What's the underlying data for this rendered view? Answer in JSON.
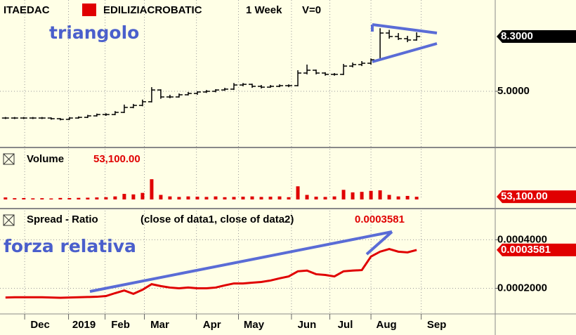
{
  "chart_data": [
    {
      "type": "ohlc",
      "symbol": "ITAEDAC",
      "title": "EDILIZIACROBATIC",
      "interval": "1 Week",
      "info": "V=0",
      "annotation": "triangolo",
      "color": "#000000",
      "open": [
        3.39,
        3.39,
        3.39,
        3.39,
        3.39,
        3.39,
        3.35,
        3.31,
        3.39,
        3.43,
        3.52,
        3.6,
        3.6,
        3.73,
        4.03,
        4.15,
        4.37,
        5.08,
        4.66,
        4.66,
        4.79,
        4.87,
        4.96,
        5.0,
        5.08,
        5.13,
        5.38,
        5.42,
        5.3,
        5.25,
        5.3,
        5.34,
        5.34,
        6.1,
        6.27,
        6.1,
        6.02,
        6.02,
        6.52,
        6.61,
        6.69,
        6.9,
        8.51,
        8.3,
        8.17,
        8.09
      ],
      "high": [
        3.45,
        3.45,
        3.45,
        3.45,
        3.45,
        3.43,
        3.39,
        3.45,
        3.49,
        3.58,
        3.66,
        3.68,
        3.81,
        4.2,
        4.24,
        4.5,
        5.25,
        5.12,
        4.79,
        4.87,
        4.96,
        5.0,
        5.08,
        5.13,
        5.21,
        5.5,
        5.5,
        5.46,
        5.38,
        5.38,
        5.42,
        5.42,
        6.27,
        6.61,
        6.31,
        6.15,
        6.1,
        6.65,
        6.73,
        6.82,
        6.98,
        8.8,
        8.7,
        8.51,
        8.34,
        8.55
      ],
      "low": [
        3.33,
        3.33,
        3.33,
        3.33,
        3.33,
        3.29,
        3.25,
        3.27,
        3.35,
        3.39,
        3.48,
        3.52,
        3.56,
        3.69,
        3.98,
        4.1,
        4.33,
        4.55,
        4.58,
        4.62,
        4.75,
        4.79,
        4.9,
        4.94,
        5.03,
        5.08,
        5.3,
        5.21,
        5.17,
        5.21,
        5.25,
        5.25,
        5.3,
        6.02,
        6.02,
        5.94,
        5.94,
        5.98,
        6.44,
        6.52,
        6.61,
        6.86,
        8.17,
        8.09,
        7.96,
        8.05
      ],
      "close": [
        3.39,
        3.39,
        3.39,
        3.39,
        3.39,
        3.35,
        3.31,
        3.39,
        3.43,
        3.52,
        3.6,
        3.6,
        3.73,
        4.03,
        4.15,
        4.37,
        5.08,
        4.66,
        4.66,
        4.79,
        4.87,
        4.96,
        5.0,
        5.08,
        5.13,
        5.38,
        5.42,
        5.3,
        5.25,
        5.3,
        5.34,
        5.34,
        6.1,
        6.27,
        6.1,
        6.02,
        6.02,
        6.52,
        6.61,
        6.69,
        6.9,
        8.51,
        8.3,
        8.17,
        8.09,
        8.3
      ],
      "ylim": [
        1.7,
        10.5
      ],
      "yticks": [
        {
          "value": 5,
          "label": "5.0000"
        }
      ],
      "last_value": {
        "value": 8.3,
        "label": "8.3000"
      }
    },
    {
      "type": "bar",
      "title": "Volume",
      "color": "#e00000",
      "values": [
        40000,
        25000,
        28000,
        22000,
        25000,
        20000,
        30000,
        28000,
        32000,
        35000,
        40000,
        45000,
        60000,
        110000,
        100000,
        130000,
        400000,
        90000,
        60000,
        50000,
        60000,
        55000,
        50000,
        60000,
        45000,
        50000,
        55000,
        60000,
        50000,
        55000,
        60000,
        45000,
        260000,
        90000,
        55000,
        50000,
        60000,
        190000,
        140000,
        150000,
        170000,
        180000,
        90000,
        60000,
        70000,
        53100
      ],
      "ylim": [
        0,
        1000000
      ],
      "last_value": {
        "value": 53100,
        "label": "53,100.00"
      }
    },
    {
      "type": "line",
      "title": "Spread - Ratio",
      "subtitle": "(close of data1,  close of data2)",
      "annotation": "forza relativa",
      "color": "#e00000",
      "values": [
        0.000162,
        0.000163,
        0.000163,
        0.000163,
        0.000163,
        0.000162,
        0.000161,
        0.000162,
        0.000163,
        0.000164,
        0.000165,
        0.000168,
        0.00018,
        0.000191,
        0.000177,
        0.000194,
        0.000217,
        0.000209,
        0.000203,
        0.0002,
        0.000203,
        0.0002,
        0.0002,
        0.000203,
        0.000212,
        0.00022,
        0.00022,
        0.000223,
        0.000226,
        0.000232,
        0.000241,
        0.000249,
        0.00027,
        0.000273,
        0.000258,
        0.000255,
        0.000249,
        0.00027,
        0.000273,
        0.000275,
        0.000331,
        0.000351,
        0.000362,
        0.000351,
        0.000348,
        0.0003581
      ],
      "ylim": [
        0.0001,
        0.00052
      ],
      "yticks": [
        {
          "value": 0.0004,
          "label": "0.0004000"
        },
        {
          "value": 0.0002,
          "label": "0.0002000"
        }
      ],
      "last_value": 0.0003581,
      "xlim": [
        -0.6,
        53.6
      ],
      "xticks": [
        {
          "value": 2.1,
          "label": "Dec"
        },
        {
          "value": 6.9,
          "label": "2019"
        },
        {
          "value": 10.9,
          "label": "Feb"
        },
        {
          "value": 15.2,
          "label": "Mar"
        },
        {
          "value": 20.9,
          "label": "Apr"
        },
        {
          "value": 25.5,
          "label": "May"
        },
        {
          "value": 31.3,
          "label": "Jun"
        },
        {
          "value": 35.5,
          "label": "Jul"
        },
        {
          "value": 40,
          "label": "Aug"
        },
        {
          "value": 45.5,
          "label": "Sep"
        }
      ]
    }
  ]
}
